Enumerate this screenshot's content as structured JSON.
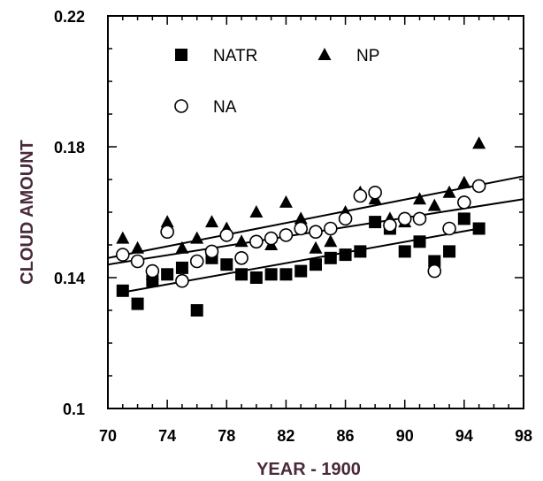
{
  "chart_data": {
    "type": "scatter",
    "title": "",
    "xlabel": "YEAR - 1900",
    "ylabel": "CLOUD AMOUNT",
    "xlim": [
      70,
      98
    ],
    "ylim": [
      0.1,
      0.22
    ],
    "xticks": [
      "70",
      "74",
      "78",
      "82",
      "86",
      "90",
      "94",
      "98"
    ],
    "yticks": [
      "0.1",
      "0.14",
      "0.18",
      "0.22"
    ],
    "grid": false,
    "legend": "top",
    "series": [
      {
        "name": "NATR",
        "marker": "square-filled",
        "points": [
          [
            71,
            0.136
          ],
          [
            72,
            0.132
          ],
          [
            73,
            0.139
          ],
          [
            74,
            0.141
          ],
          [
            75,
            0.143
          ],
          [
            76,
            0.13
          ],
          [
            77,
            0.146
          ],
          [
            78,
            0.144
          ],
          [
            79,
            0.141
          ],
          [
            80,
            0.14
          ],
          [
            81,
            0.141
          ],
          [
            82,
            0.141
          ],
          [
            83,
            0.142
          ],
          [
            84,
            0.144
          ],
          [
            85,
            0.146
          ],
          [
            86,
            0.147
          ],
          [
            87,
            0.148
          ],
          [
            88,
            0.157
          ],
          [
            89,
            0.155
          ],
          [
            90,
            0.148
          ],
          [
            91,
            0.151
          ],
          [
            92,
            0.145
          ],
          [
            93,
            0.148
          ],
          [
            94,
            0.158
          ],
          [
            95,
            0.155
          ]
        ],
        "trend": [
          [
            71,
            0.1355
          ],
          [
            95,
            0.155
          ]
        ]
      },
      {
        "name": "NP",
        "marker": "triangle-filled",
        "points": [
          [
            71,
            0.152
          ],
          [
            72,
            0.149
          ],
          [
            73,
            0.141
          ],
          [
            74,
            0.157
          ],
          [
            75,
            0.149
          ],
          [
            76,
            0.152
          ],
          [
            77,
            0.157
          ],
          [
            78,
            0.155
          ],
          [
            79,
            0.151
          ],
          [
            80,
            0.16
          ],
          [
            81,
            0.15
          ],
          [
            82,
            0.163
          ],
          [
            83,
            0.158
          ],
          [
            84,
            0.149
          ],
          [
            85,
            0.151
          ],
          [
            86,
            0.16
          ],
          [
            87,
            0.166
          ],
          [
            88,
            0.164
          ],
          [
            89,
            0.158
          ],
          [
            90,
            0.157
          ],
          [
            91,
            0.164
          ],
          [
            92,
            0.162
          ],
          [
            93,
            0.166
          ],
          [
            94,
            0.169
          ],
          [
            95,
            0.181
          ]
        ],
        "trend": [
          [
            70,
            0.146
          ],
          [
            98,
            0.171
          ]
        ]
      },
      {
        "name": "NA",
        "marker": "circle-open",
        "points": [
          [
            71,
            0.147
          ],
          [
            72,
            0.145
          ],
          [
            73,
            0.142
          ],
          [
            74,
            0.154
          ],
          [
            75,
            0.139
          ],
          [
            76,
            0.145
          ],
          [
            77,
            0.148
          ],
          [
            78,
            0.153
          ],
          [
            79,
            0.146
          ],
          [
            80,
            0.151
          ],
          [
            81,
            0.152
          ],
          [
            82,
            0.153
          ],
          [
            83,
            0.155
          ],
          [
            84,
            0.154
          ],
          [
            85,
            0.155
          ],
          [
            86,
            0.158
          ],
          [
            87,
            0.165
          ],
          [
            88,
            0.166
          ],
          [
            89,
            0.156
          ],
          [
            90,
            0.158
          ],
          [
            91,
            0.158
          ],
          [
            92,
            0.142
          ],
          [
            93,
            0.155
          ],
          [
            94,
            0.163
          ],
          [
            95,
            0.168
          ]
        ],
        "trend": [
          [
            70,
            0.144
          ],
          [
            98,
            0.164
          ]
        ]
      }
    ]
  }
}
